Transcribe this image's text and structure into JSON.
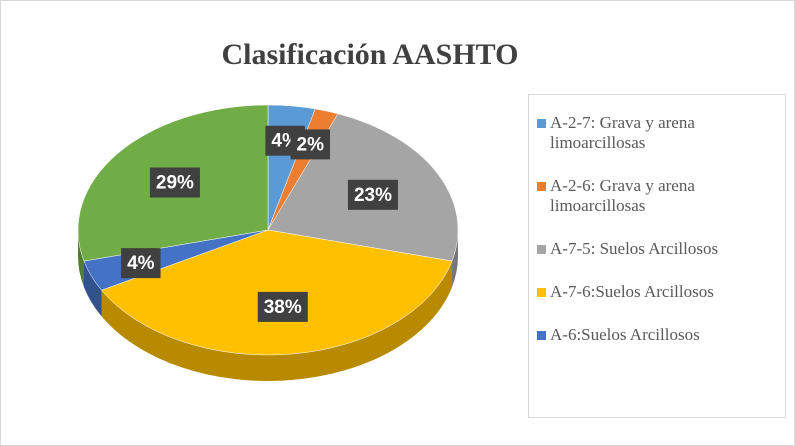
{
  "chart_data": {
    "type": "pie",
    "title": "Clasificación AASHTO",
    "categories": [
      "A-2-7: Grava y arena limoarcillosas",
      "A-2-6: Grava y arena limoarcillosas",
      "A-7-5: Suelos Arcillosos",
      "A-7-6:Suelos Arcillosos",
      "A-6:Suelos Arcillosos",
      null
    ],
    "values": [
      4,
      2,
      23,
      38,
      4,
      29
    ],
    "value_labels": [
      "4%",
      "2%",
      "23%",
      "38%",
      "4%",
      "29%"
    ],
    "colors": [
      "#5b9bd5",
      "#ed7d31",
      "#a5a5a5",
      "#ffc000",
      "#4472c4",
      "#70ad47"
    ],
    "legend": "right"
  }
}
